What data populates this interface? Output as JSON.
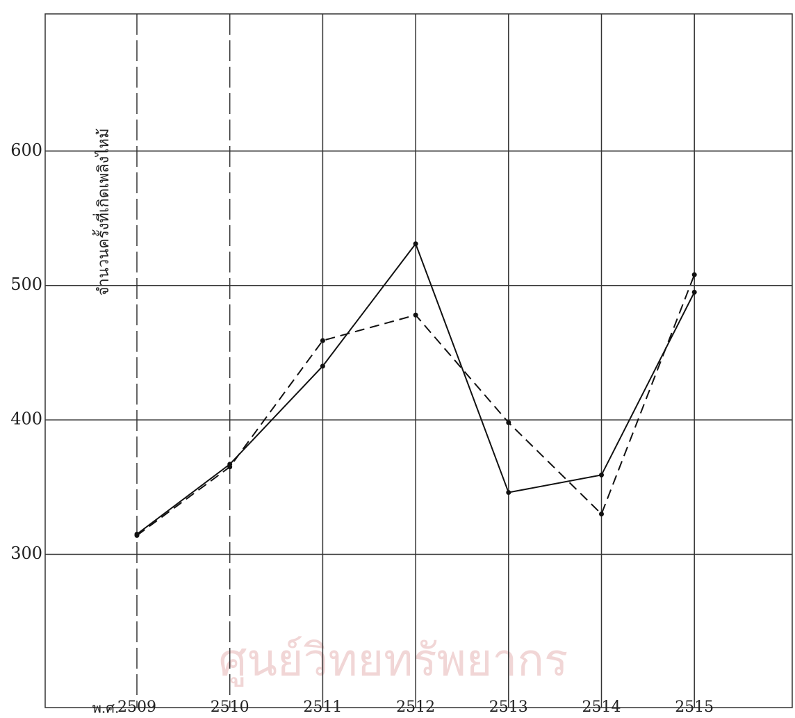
{
  "chart_data": {
    "type": "line",
    "x_label": "พ.ศ.",
    "y_label": "จำนวนครั้งที่เกิดเพลิงไหม้",
    "watermark": "ศูนย์วิทยทรัพยากร",
    "categories": [
      "2509",
      "2510",
      "2511",
      "2512",
      "2513",
      "2514",
      "2515"
    ],
    "series": [
      {
        "color": "#111111",
        "style": "solid",
        "values": [
          315,
          367,
          440,
          531,
          346,
          359,
          495
        ]
      },
      {
        "color": "#111111",
        "style": "dashed",
        "values": [
          314,
          365,
          459,
          478,
          398,
          330,
          508
        ]
      }
    ],
    "ylim": [
      186,
      702
    ],
    "yticks": [
      300,
      400,
      500,
      600
    ],
    "grid": true
  }
}
